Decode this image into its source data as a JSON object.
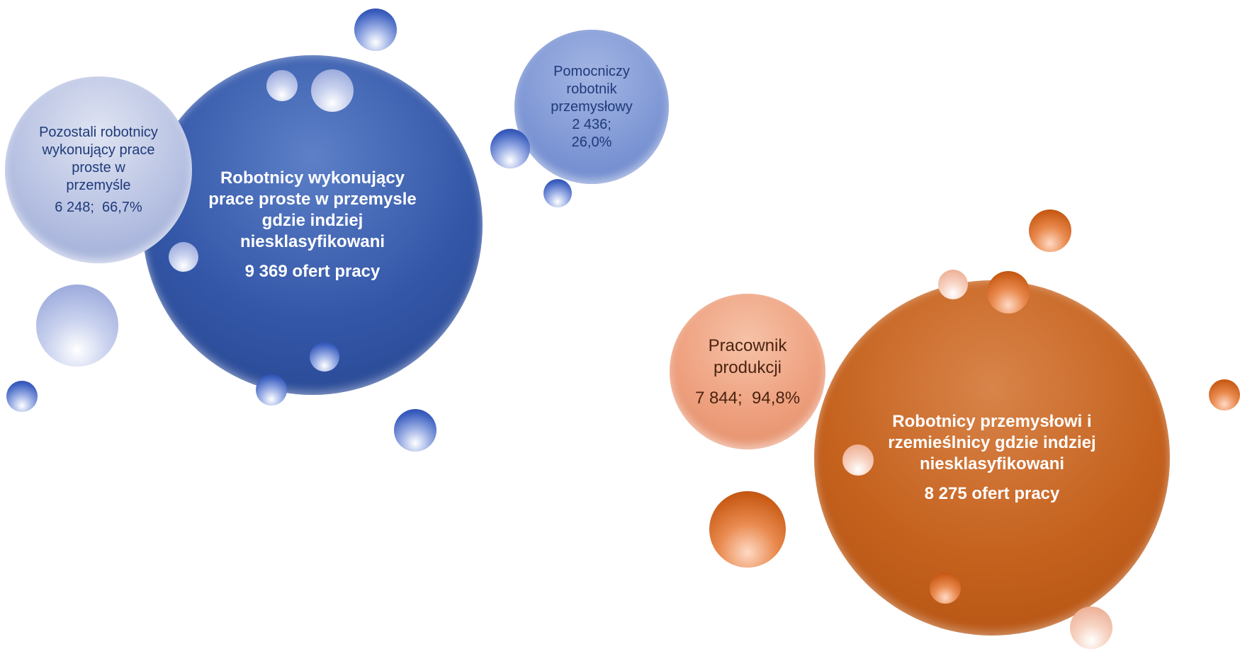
{
  "groups": [
    {
      "title": "Robotnicy wykonujący prace proste w przemysle gdzie indziej niesklasyfikowani",
      "offers": "9 369 ofert pracy",
      "items": [
        {
          "label": "Pozostali robotnicy wykonujący prace proste w przemyśle",
          "stats": "6 248;  66,7%"
        },
        {
          "label": "Pomocniczy robotnik przemysłowy",
          "stats": "2 436; 26,0%"
        }
      ]
    },
    {
      "title": "Robotnicy przemysłowi i rzemieślnicy gdzie indziej niesklasyfikowani",
      "offers": "8 275 ofert pracy",
      "items": [
        {
          "label": "Pracownik produkcji",
          "stats": "7 844;  94,8%"
        }
      ]
    }
  ]
}
